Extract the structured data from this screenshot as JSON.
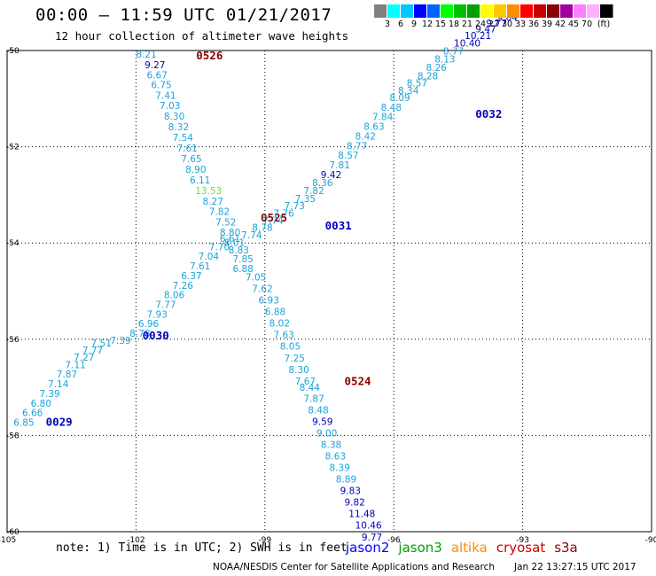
{
  "header": {
    "title": "00:00 — 11:59 UTC 01/21/2017",
    "subtitle": "12 hour collection of altimeter wave heights"
  },
  "legend": {
    "colors": [
      "#7f7f7f",
      "#00ffff",
      "#00c8ff",
      "#0000ff",
      "#0064ff",
      "#00ff00",
      "#00c000",
      "#00a000",
      "#ffff00",
      "#ffc800",
      "#ff8c00",
      "#ff0000",
      "#c80000",
      "#8b0000",
      "#a000a0",
      "#ff80ff",
      "#ffb0ff",
      "#000000"
    ],
    "ticks": [
      "3",
      "6",
      "9",
      "12",
      "15",
      "18",
      "21",
      "24",
      "27",
      "30",
      "33",
      "36",
      "39",
      "42",
      "45",
      "70",
      "(ft)"
    ]
  },
  "axes": {
    "x_ticks": [
      -105,
      -102,
      -99,
      -96,
      -93,
      -90
    ],
    "y_ticks": [
      -50,
      -52,
      -54,
      -56,
      -58,
      -60
    ]
  },
  "colors": {
    "cyan": "#1aa3d9",
    "navy": "#0000c0",
    "maroon": "#8b0000",
    "green": "#66dd44"
  },
  "passes": [
    {
      "id": "0526",
      "label_at": [
        -100.6,
        -50.18
      ],
      "points": [
        {
          "lon": -102.0,
          "lat": -50.15,
          "v": "8.21",
          "c": "cyan"
        },
        {
          "lon": -101.8,
          "lat": -50.37,
          "v": "9.27",
          "c": "navy"
        },
        {
          "lon": -101.75,
          "lat": -50.58,
          "v": "6.67",
          "c": "cyan"
        },
        {
          "lon": -101.65,
          "lat": -50.78,
          "v": "6.75",
          "c": "cyan"
        },
        {
          "lon": -101.55,
          "lat": -51.0,
          "v": "7.41",
          "c": "cyan"
        },
        {
          "lon": -101.45,
          "lat": -51.22,
          "v": "7.03",
          "c": "cyan"
        },
        {
          "lon": -101.35,
          "lat": -51.44,
          "v": "8.30",
          "c": "cyan"
        },
        {
          "lon": -101.25,
          "lat": -51.66,
          "v": "8.32",
          "c": "cyan"
        },
        {
          "lon": -101.15,
          "lat": -51.88,
          "v": "7.54",
          "c": "cyan"
        },
        {
          "lon": -101.05,
          "lat": -52.1,
          "v": "7.61",
          "c": "cyan"
        },
        {
          "lon": -100.95,
          "lat": -52.32,
          "v": "7.65",
          "c": "cyan"
        },
        {
          "lon": -100.85,
          "lat": -52.54,
          "v": "8.90",
          "c": "cyan"
        },
        {
          "lon": -100.75,
          "lat": -52.76,
          "v": "6.11",
          "c": "cyan"
        },
        {
          "lon": -100.62,
          "lat": -52.98,
          "v": "13.53",
          "c": "green"
        },
        {
          "lon": -100.45,
          "lat": -53.2,
          "v": "8.27",
          "c": "cyan"
        },
        {
          "lon": -100.3,
          "lat": -53.42,
          "v": "7.82",
          "c": "cyan"
        },
        {
          "lon": -100.15,
          "lat": -53.64,
          "v": "7.52",
          "c": "cyan"
        },
        {
          "lon": -100.05,
          "lat": -53.85,
          "v": "8.80",
          "c": "cyan"
        },
        {
          "lon": -99.95,
          "lat": -54.06,
          "v": "8.01",
          "c": "cyan"
        },
        {
          "lon": -99.85,
          "lat": -54.22,
          "v": "8.83",
          "c": "cyan"
        },
        {
          "lon": -99.75,
          "lat": -54.4,
          "v": "7.85",
          "c": "cyan"
        },
        {
          "lon": -99.45,
          "lat": -54.78,
          "v": "7.05",
          "c": "cyan"
        },
        {
          "lon": -99.3,
          "lat": -55.02,
          "v": "7.62",
          "c": "cyan"
        },
        {
          "lon": -99.15,
          "lat": -55.26,
          "v": "6.93",
          "c": "cyan"
        },
        {
          "lon": -99.0,
          "lat": -55.5,
          "v": "6.88",
          "c": "cyan"
        },
        {
          "lon": -98.9,
          "lat": -55.74,
          "v": "8.02",
          "c": "cyan"
        },
        {
          "lon": -98.8,
          "lat": -55.98,
          "v": "7.63",
          "c": "cyan"
        },
        {
          "lon": -98.65,
          "lat": -56.22,
          "v": "8.05",
          "c": "cyan"
        },
        {
          "lon": -98.55,
          "lat": -56.46,
          "v": "7.25",
          "c": "cyan"
        },
        {
          "lon": -98.45,
          "lat": -56.7,
          "v": "8.30",
          "c": "cyan"
        }
      ]
    },
    {
      "id": "0524",
      "label_at": [
        -97.15,
        -56.95
      ],
      "points": [
        {
          "lon": -98.3,
          "lat": -56.94,
          "v": "7.67",
          "c": "cyan"
        },
        {
          "lon": -98.2,
          "lat": -57.07,
          "v": "8.44",
          "c": "cyan"
        },
        {
          "lon": -98.1,
          "lat": -57.3,
          "v": "7.87",
          "c": "cyan"
        },
        {
          "lon": -98.0,
          "lat": -57.54,
          "v": "8.48",
          "c": "cyan"
        },
        {
          "lon": -97.9,
          "lat": -57.78,
          "v": "9.59",
          "c": "navy"
        },
        {
          "lon": -97.8,
          "lat": -58.02,
          "v": "9.00",
          "c": "cyan"
        },
        {
          "lon": -97.7,
          "lat": -58.26,
          "v": "8.38",
          "c": "cyan"
        },
        {
          "lon": -97.6,
          "lat": -58.5,
          "v": "8.63",
          "c": "cyan"
        },
        {
          "lon": -97.5,
          "lat": -58.74,
          "v": "8.39",
          "c": "cyan"
        },
        {
          "lon": -97.35,
          "lat": -58.98,
          "v": "8.89",
          "c": "cyan"
        },
        {
          "lon": -97.25,
          "lat": -59.22,
          "v": "9.83",
          "c": "navy"
        },
        {
          "lon": -97.15,
          "lat": -59.46,
          "v": "9.82",
          "c": "navy"
        },
        {
          "lon": -97.05,
          "lat": -59.7,
          "v": "11.48",
          "c": "navy"
        },
        {
          "lon": -96.9,
          "lat": -59.94,
          "v": "10.46",
          "c": "navy"
        },
        {
          "lon": -96.75,
          "lat": -60.18,
          "v": "9.77",
          "c": "navy"
        }
      ]
    },
    {
      "id": "0525",
      "label_at": [
        -99.1,
        -53.55
      ],
      "points": []
    },
    {
      "id": "0029",
      "label_at": [
        -104.1,
        -57.8
      ],
      "points": [
        {
          "lon": -104.85,
          "lat": -57.8,
          "v": "6.85",
          "c": "cyan"
        },
        {
          "lon": -104.65,
          "lat": -57.6,
          "v": "6.66",
          "c": "cyan"
        },
        {
          "lon": -104.45,
          "lat": -57.4,
          "v": "6.80",
          "c": "cyan"
        },
        {
          "lon": -104.25,
          "lat": -57.2,
          "v": "7.39",
          "c": "cyan"
        },
        {
          "lon": -104.05,
          "lat": -57.0,
          "v": "7.14",
          "c": "cyan"
        },
        {
          "lon": -103.85,
          "lat": -56.8,
          "v": "7.87",
          "c": "cyan"
        },
        {
          "lon": -103.65,
          "lat": -56.6,
          "v": "7.11",
          "c": "cyan"
        },
        {
          "lon": -103.45,
          "lat": -56.45,
          "v": "7.27",
          "c": "cyan"
        },
        {
          "lon": -103.25,
          "lat": -56.3,
          "v": "7.77",
          "c": "cyan"
        },
        {
          "lon": -103.05,
          "lat": -56.15,
          "v": "7.51",
          "c": "cyan"
        },
        {
          "lon": -102.6,
          "lat": -56.1,
          "v": "7.39",
          "c": "cyan"
        }
      ]
    },
    {
      "id": "0030",
      "label_at": [
        -101.85,
        -56.0
      ],
      "points": [
        {
          "lon": -102.15,
          "lat": -55.95,
          "v": "8.78",
          "c": "cyan"
        },
        {
          "lon": -101.95,
          "lat": -55.75,
          "v": "6.96",
          "c": "cyan"
        },
        {
          "lon": -101.75,
          "lat": -55.55,
          "v": "7.93",
          "c": "cyan"
        },
        {
          "lon": -101.55,
          "lat": -55.35,
          "v": "7.77",
          "c": "cyan"
        },
        {
          "lon": -101.35,
          "lat": -55.15,
          "v": "8.06",
          "c": "cyan"
        },
        {
          "lon": -101.15,
          "lat": -54.95,
          "v": "7.26",
          "c": "cyan"
        },
        {
          "lon": -100.95,
          "lat": -54.75,
          "v": "6.37",
          "c": "cyan"
        },
        {
          "lon": -100.75,
          "lat": -54.55,
          "v": "7.61",
          "c": "cyan"
        },
        {
          "lon": -100.55,
          "lat": -54.35,
          "v": "7.04",
          "c": "cyan"
        },
        {
          "lon": -100.3,
          "lat": -54.15,
          "v": "7.70",
          "c": "cyan"
        },
        {
          "lon": -100.05,
          "lat": -53.98,
          "v": "6.61",
          "c": "cyan"
        },
        {
          "lon": -99.75,
          "lat": -54.6,
          "v": "6.88",
          "c": "cyan"
        },
        {
          "lon": -99.55,
          "lat": -53.9,
          "v": "7.74",
          "c": "cyan"
        }
      ]
    },
    {
      "id": "0031",
      "label_at": [
        -97.6,
        -53.72
      ],
      "points": [
        {
          "lon": -99.3,
          "lat": -53.75,
          "v": "8.78",
          "c": "cyan"
        },
        {
          "lon": -99.05,
          "lat": -53.6,
          "v": "7.74",
          "c": "cyan"
        },
        {
          "lon": -98.8,
          "lat": -53.45,
          "v": "7.76",
          "c": "cyan"
        },
        {
          "lon": -98.55,
          "lat": -53.3,
          "v": "7.73",
          "c": "cyan"
        },
        {
          "lon": -98.3,
          "lat": -53.15,
          "v": "7.35",
          "c": "cyan"
        },
        {
          "lon": -98.1,
          "lat": -52.98,
          "v": "7.82",
          "c": "cyan"
        },
        {
          "lon": -97.9,
          "lat": -52.82,
          "v": "8.36",
          "c": "cyan"
        },
        {
          "lon": -97.7,
          "lat": -52.65,
          "v": "9.42",
          "c": "navy"
        },
        {
          "lon": -97.5,
          "lat": -52.45,
          "v": "7.81",
          "c": "cyan"
        },
        {
          "lon": -97.3,
          "lat": -52.25,
          "v": "8.57",
          "c": "cyan"
        },
        {
          "lon": -97.1,
          "lat": -52.05,
          "v": "8.77",
          "c": "cyan"
        },
        {
          "lon": -96.9,
          "lat": -51.85,
          "v": "8.42",
          "c": "cyan"
        }
      ]
    },
    {
      "id": "0032",
      "label_at": [
        -94.1,
        -51.4
      ],
      "points": [
        {
          "lon": -96.7,
          "lat": -51.65,
          "v": "8.63",
          "c": "cyan"
        },
        {
          "lon": -96.5,
          "lat": -51.45,
          "v": "7.84",
          "c": "cyan"
        },
        {
          "lon": -96.3,
          "lat": -51.25,
          "v": "8.48",
          "c": "cyan"
        },
        {
          "lon": -96.1,
          "lat": -51.05,
          "v": "8.09",
          "c": "cyan"
        },
        {
          "lon": -95.9,
          "lat": -50.9,
          "v": "8.34",
          "c": "cyan"
        },
        {
          "lon": -95.7,
          "lat": -50.75,
          "v": "8.57",
          "c": "cyan"
        },
        {
          "lon": -95.45,
          "lat": -50.6,
          "v": "8.28",
          "c": "cyan"
        },
        {
          "lon": -95.25,
          "lat": -50.42,
          "v": "8.26",
          "c": "cyan"
        },
        {
          "lon": -95.05,
          "lat": -50.25,
          "v": "8.13",
          "c": "cyan"
        },
        {
          "lon": -94.85,
          "lat": -50.08,
          "v": "8.77",
          "c": "cyan"
        },
        {
          "lon": -94.6,
          "lat": -49.92,
          "v": "10.40",
          "c": "navy"
        },
        {
          "lon": -94.35,
          "lat": -49.76,
          "v": "10.21",
          "c": "navy"
        },
        {
          "lon": -94.1,
          "lat": -49.62,
          "v": "9.47",
          "c": "navy"
        },
        {
          "lon": -93.85,
          "lat": -49.5,
          "v": "9.77",
          "c": "navy"
        },
        {
          "lon": -93.6,
          "lat": -49.38,
          "v": "9.64",
          "c": "navy"
        }
      ]
    }
  ],
  "footer": {
    "note": "note: 1) Time is in UTC; 2) SWH is in feet",
    "satellites": [
      {
        "name": "jason2",
        "color": "#0000ff"
      },
      {
        "name": "jason3",
        "color": "#00a000"
      },
      {
        "name": "altika",
        "color": "#ff8c00"
      },
      {
        "name": "cryosat",
        "color": "#c80000"
      },
      {
        "name": "s3a",
        "color": "#8b0000"
      }
    ],
    "credit": "NOAA/NESDIS Center for Satellite Applications and Research",
    "timestamp": "Jan 22 13:27:15 UTC 2017"
  }
}
